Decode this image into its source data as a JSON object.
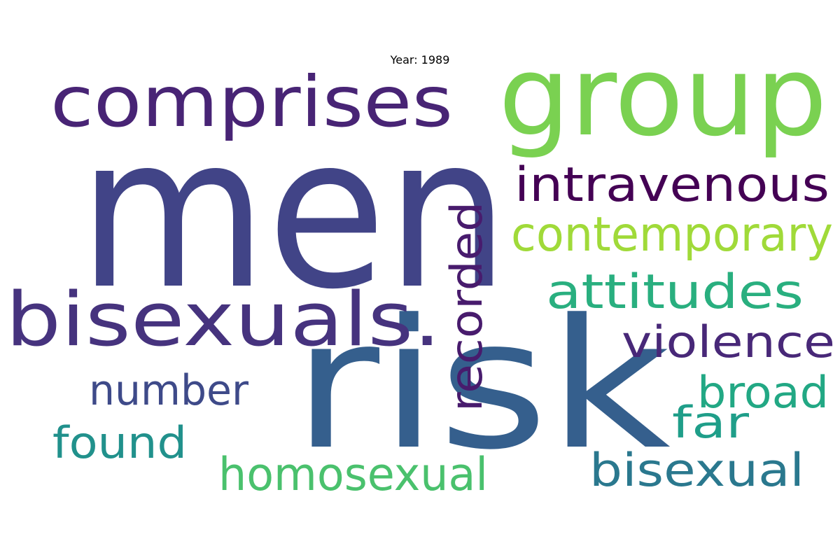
{
  "title": "Year: 1989",
  "words": [
    {
      "text": "men",
      "color": "#414487"
    },
    {
      "text": "risk",
      "color": "#355f8d"
    },
    {
      "text": "group",
      "color": "#7ad151"
    },
    {
      "text": "comprises",
      "color": "#482475"
    },
    {
      "text": "bisexuals.",
      "color": "#46337e"
    },
    {
      "text": "intravenous",
      "color": "#440154"
    },
    {
      "text": "contemporary",
      "color": "#a0da39"
    },
    {
      "text": "recorded",
      "color": "#481b6d"
    },
    {
      "text": "attitudes",
      "color": "#29af7f"
    },
    {
      "text": "violence",
      "color": "#482878"
    },
    {
      "text": "number",
      "color": "#3e4a89"
    },
    {
      "text": "broad",
      "color": "#22a884"
    },
    {
      "text": "far",
      "color": "#1f9e89"
    },
    {
      "text": "found",
      "color": "#21918c"
    },
    {
      "text": "homosexual",
      "color": "#4ac16d"
    },
    {
      "text": "bisexual",
      "color": "#2a788e"
    }
  ]
}
